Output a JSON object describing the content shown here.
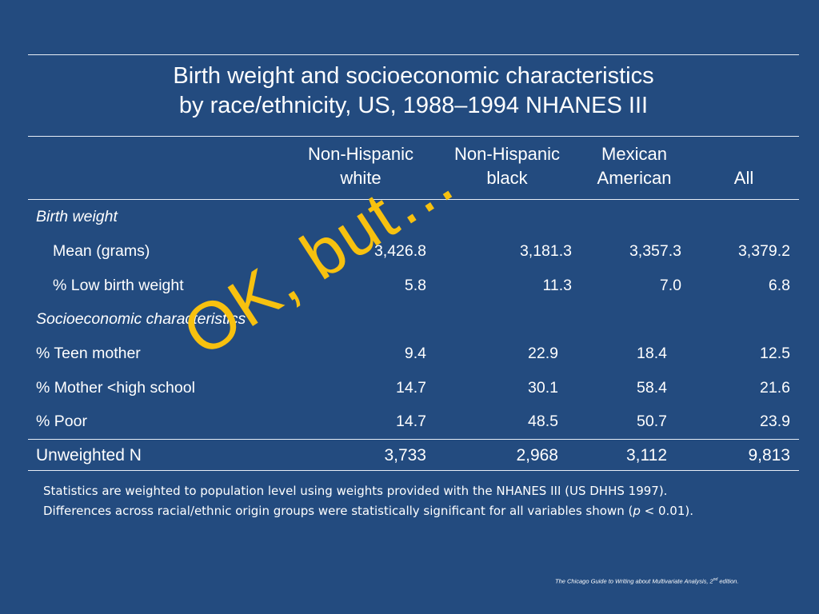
{
  "title": {
    "line1": "Birth weight and socioeconomic characteristics",
    "line2": "by race/ethnicity, US, 1988–1994 NHANES III"
  },
  "table": {
    "columns": [
      {
        "line1": "Non-Hispanic",
        "line2": "white"
      },
      {
        "line1": "Non-Hispanic",
        "line2": "black"
      },
      {
        "line1": "Mexican",
        "line2": "American"
      },
      {
        "line1": "",
        "line2": "All"
      }
    ],
    "sections": [
      {
        "label": "Birth weight"
      },
      {
        "label": "Socioeconomic characteristics"
      }
    ],
    "rows": [
      {
        "label": "Mean (grams)",
        "values": [
          "3,426.8",
          "3,181.3",
          "3,357.3",
          "3,379.2"
        ]
      },
      {
        "label": "% Low birth weight",
        "values": [
          "5.8",
          "11.3",
          "7.0",
          "6.8"
        ]
      },
      {
        "label": "% Teen mother",
        "values": [
          "9.4",
          "22.9",
          "18.4",
          "12.5"
        ]
      },
      {
        "label": "% Mother <high school",
        "values": [
          "14.7",
          "30.1",
          "58.4",
          "21.6"
        ]
      },
      {
        "label": "% Poor",
        "values": [
          "14.7",
          "48.5",
          "50.7",
          "23.9"
        ]
      },
      {
        "label": "Unweighted N",
        "values": [
          "3,733",
          "2,968",
          "3,112",
          "9,813"
        ]
      }
    ]
  },
  "notes": {
    "line1": "Statistics are weighted to population level using weights provided with the NHANES III (US DHHS 1997).",
    "line2_pre": "Differences across racial/ethnic origin groups were statistically significant for all variables shown (",
    "line2_p": "p",
    "line2_post": " < 0.01)."
  },
  "source": {
    "text": "The Chicago Guide to Writing about Multivariate Analysis, 2",
    "sup": "nd",
    "suffix": " edition."
  },
  "stamp": {
    "text": "OK, but…",
    "color": "#f7c10f"
  },
  "colors": {
    "background": "#234b7f",
    "text": "#ffffff"
  }
}
